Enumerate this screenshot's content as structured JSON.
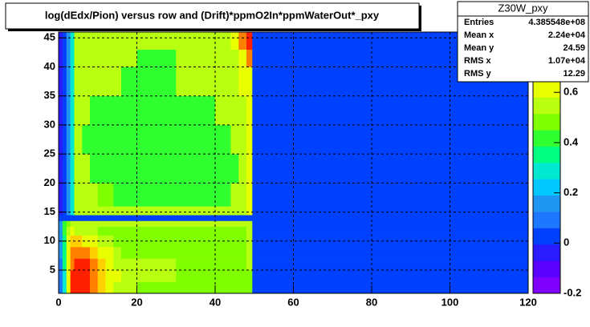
{
  "chart_data": {
    "type": "heatmap",
    "title": "log(dEdx/Pion) versus row and (Drift)*ppmO2In*ppmWaterOut*_pxy",
    "xlim": [
      0,
      120
    ],
    "xticks": [
      0,
      20,
      40,
      60,
      80,
      100,
      120
    ],
    "ylim": [
      1,
      46
    ],
    "yticks": [
      5,
      10,
      15,
      20,
      25,
      30,
      35,
      40,
      45
    ],
    "zlim": [
      -0.2,
      0.84
    ],
    "zticks": [
      -0.2,
      0,
      0.2,
      0.4,
      0.6
    ],
    "grid": true,
    "palette": [
      "#7f00ff",
      "#5a00ff",
      "#2a1cff",
      "#0040ff",
      "#1e78ff",
      "#1e96f0",
      "#00c8ff",
      "#00e8d0",
      "#00ff80",
      "#30ff30",
      "#80ff00",
      "#b8ff10",
      "#e8ff00",
      "#ffd000",
      "#ff8000",
      "#ff2000"
    ],
    "xbins": [
      0,
      1,
      2,
      3,
      4,
      6,
      8,
      10,
      12,
      14,
      16,
      20,
      30,
      40,
      44,
      46,
      48,
      49.5,
      120
    ],
    "ybins": [
      1,
      3,
      5,
      7,
      9,
      11,
      12.5,
      13.5,
      14.5,
      16,
      20,
      25,
      30,
      35,
      40,
      43,
      46
    ],
    "z": [
      [
        0.12,
        0.3,
        0.62,
        0.8,
        0.82,
        0.8,
        0.72,
        0.66,
        0.6,
        0.56,
        0.55,
        0.5,
        0.45,
        0.45,
        0.45,
        0.5,
        0.5,
        0.02
      ],
      [
        0.12,
        0.3,
        0.6,
        0.78,
        0.82,
        0.8,
        0.75,
        0.66,
        0.62,
        0.58,
        0.55,
        0.55,
        0.5,
        0.5,
        0.5,
        0.5,
        0.5,
        0.02
      ],
      [
        0.12,
        0.35,
        0.58,
        0.75,
        0.8,
        0.78,
        0.72,
        0.66,
        0.62,
        0.56,
        0.55,
        0.52,
        0.5,
        0.5,
        0.5,
        0.5,
        0.52,
        0.02
      ],
      [
        0.15,
        0.35,
        0.58,
        0.72,
        0.76,
        0.72,
        0.66,
        0.62,
        0.58,
        0.55,
        0.45,
        0.45,
        0.45,
        0.45,
        0.45,
        0.45,
        0.52,
        0.02
      ],
      [
        0.15,
        0.38,
        0.58,
        0.65,
        0.66,
        0.64,
        0.6,
        0.56,
        0.55,
        0.5,
        0.45,
        0.45,
        0.45,
        0.45,
        0.45,
        0.45,
        0.52,
        0.02
      ],
      [
        0.15,
        0.4,
        0.56,
        0.6,
        0.56,
        0.55,
        0.55,
        0.5,
        0.5,
        0.5,
        0.5,
        0.5,
        0.5,
        0.5,
        0.5,
        0.5,
        0.52,
        0.02
      ],
      [
        0.15,
        0.4,
        0.5,
        0.55,
        0.55,
        0.55,
        0.55,
        0.55,
        0.55,
        0.55,
        0.55,
        0.55,
        0.55,
        0.55,
        0.55,
        0.55,
        0.55,
        0.02
      ],
      [
        0.05,
        0.05,
        0.05,
        0.05,
        0.05,
        0.05,
        0.05,
        0.05,
        0.05,
        0.05,
        0.05,
        0.05,
        0.05,
        0.05,
        0.05,
        0.05,
        0.05,
        0.02
      ],
      [
        -0.02,
        0.05,
        0.15,
        0.3,
        0.55,
        0.55,
        0.55,
        0.55,
        0.55,
        0.55,
        0.55,
        0.55,
        0.55,
        0.55,
        0.55,
        0.55,
        0.6,
        0.02
      ],
      [
        -0.02,
        0.05,
        0.15,
        0.3,
        0.55,
        0.55,
        0.55,
        0.5,
        0.5,
        0.4,
        0.4,
        0.4,
        0.4,
        0.4,
        0.55,
        0.55,
        0.6,
        0.02
      ],
      [
        -0.02,
        0.05,
        0.15,
        0.3,
        0.55,
        0.55,
        0.4,
        0.4,
        0.4,
        0.4,
        0.4,
        0.4,
        0.4,
        0.4,
        0.4,
        0.55,
        0.6,
        0.02
      ],
      [
        -0.02,
        0.05,
        0.15,
        0.3,
        0.55,
        0.4,
        0.4,
        0.4,
        0.4,
        0.4,
        0.4,
        0.4,
        0.4,
        0.4,
        0.55,
        0.55,
        0.6,
        0.02
      ],
      [
        -0.02,
        0.05,
        0.15,
        0.3,
        0.55,
        0.55,
        0.4,
        0.4,
        0.4,
        0.4,
        0.4,
        0.4,
        0.4,
        0.55,
        0.55,
        0.55,
        0.6,
        0.02
      ],
      [
        -0.02,
        0.05,
        0.15,
        0.3,
        0.55,
        0.55,
        0.55,
        0.55,
        0.55,
        0.55,
        0.4,
        0.4,
        0.55,
        0.55,
        0.55,
        0.6,
        0.62,
        0.02
      ],
      [
        -0.02,
        0.05,
        0.15,
        0.3,
        0.55,
        0.55,
        0.55,
        0.55,
        0.55,
        0.55,
        0.55,
        0.4,
        0.55,
        0.55,
        0.55,
        0.62,
        0.72,
        0.02
      ],
      [
        -0.02,
        0.05,
        0.15,
        0.3,
        0.55,
        0.55,
        0.55,
        0.55,
        0.55,
        0.55,
        0.55,
        0.55,
        0.55,
        0.55,
        0.62,
        0.72,
        0.8,
        0.02
      ]
    ],
    "stats": {
      "title": "Z30W_pxy",
      "rows": [
        [
          "Entries",
          "4.385548e+08"
        ],
        [
          "Mean x",
          "2.24e+04"
        ],
        [
          "Mean y",
          "24.59"
        ],
        [
          "RMS x",
          "1.07e+04"
        ],
        [
          "RMS y",
          "12.29"
        ]
      ]
    }
  }
}
